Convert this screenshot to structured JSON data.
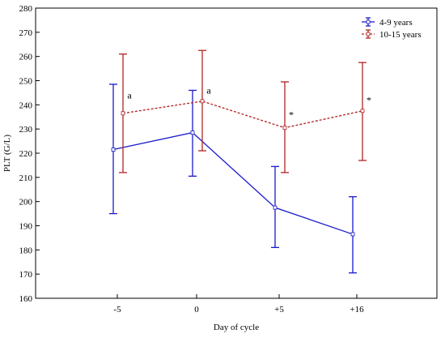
{
  "chart_data": {
    "type": "line",
    "xlabel": "Day of cycle",
    "ylabel": "PLT (G/L)",
    "categories": [
      "-5",
      "0",
      "+5",
      "+16"
    ],
    "ylim": [
      160,
      280
    ],
    "yticks": [
      160,
      170,
      180,
      190,
      200,
      210,
      220,
      230,
      240,
      250,
      260,
      270,
      280
    ],
    "grid": false,
    "legend_position": "top-right",
    "series": [
      {
        "name": "4-9 years",
        "color": "#1a1acc",
        "line_style": "solid",
        "values": [
          221.5,
          228.5,
          197.5,
          186.5
        ],
        "lower": [
          195,
          210.5,
          181,
          170.5
        ],
        "upper": [
          248.5,
          246,
          214.5,
          202
        ]
      },
      {
        "name": "10-15 years",
        "color": "#b22222",
        "line_style": "dashed",
        "values": [
          236.5,
          241.5,
          230.5,
          237.5
        ],
        "lower": [
          212,
          221,
          212,
          217
        ],
        "upper": [
          261,
          262.5,
          249.5,
          257.5
        ]
      }
    ],
    "annotations": [
      {
        "text": "a",
        "category": "-5",
        "y": 244
      },
      {
        "text": "a",
        "category": "0",
        "y": 246
      },
      {
        "text": "*",
        "category": "+5",
        "y": 236
      },
      {
        "text": "*",
        "category": "+16",
        "y": 242
      }
    ]
  }
}
